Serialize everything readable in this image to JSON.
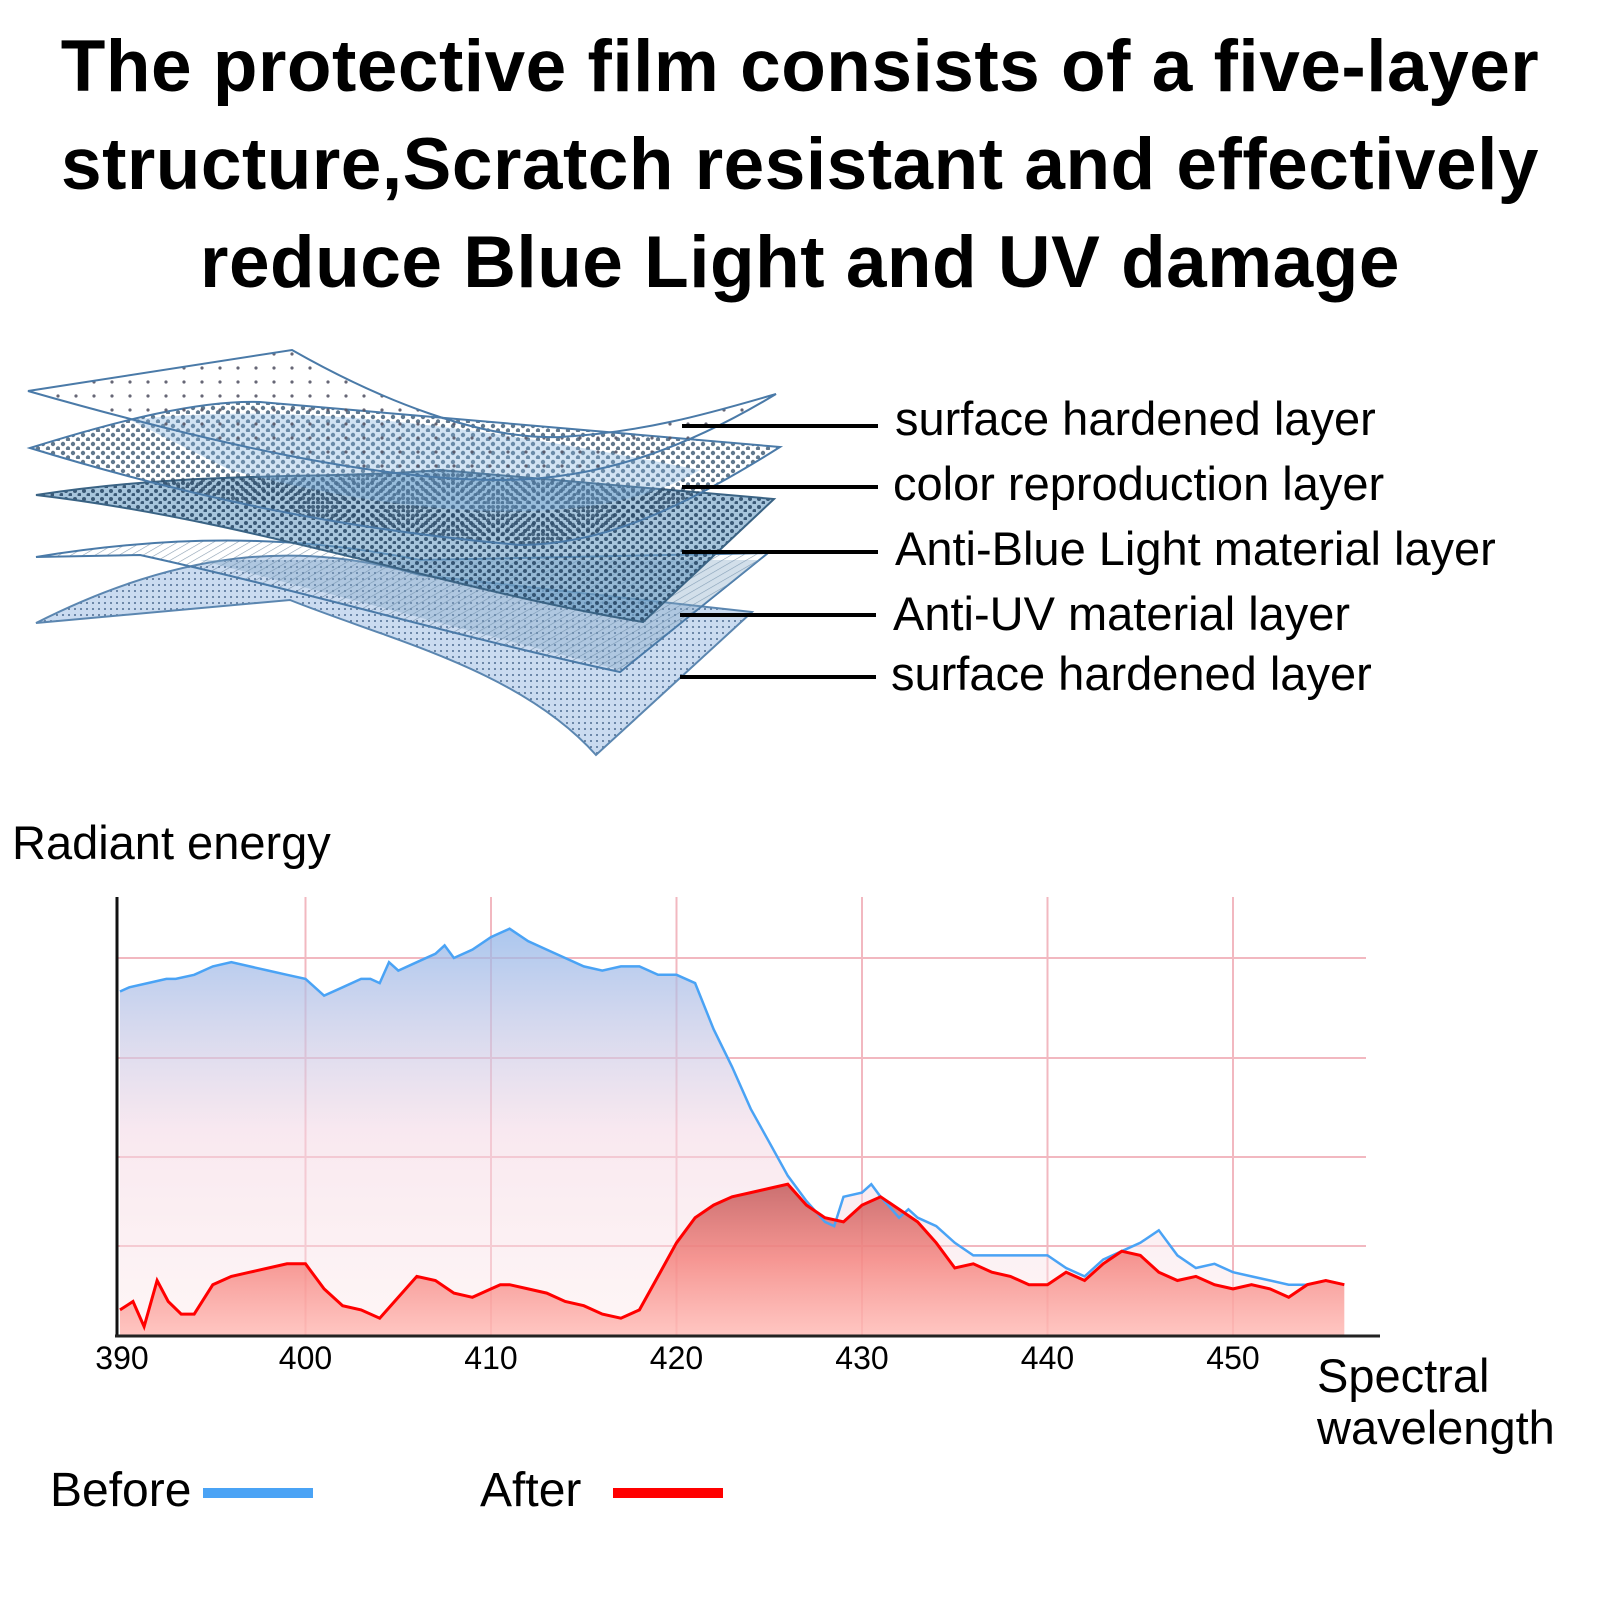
{
  "headline": {
    "lines": [
      "The protective film consists of a five-layer",
      "structure,Scratch resistant and effectively",
      "reduce Blue Light and UV damage"
    ]
  },
  "layers": [
    {
      "label": "surface hardened layer"
    },
    {
      "label": "color reproduction layer"
    },
    {
      "label": "Anti-Blue Light material layer"
    },
    {
      "label": "Anti-UV material layer"
    },
    {
      "label": "surface hardened layer"
    }
  ],
  "colors": {
    "before": "#4aa3f5",
    "after": "#ff0000",
    "grid": "#f2b8c0",
    "layer_stroke": "#4a7aa8"
  },
  "legend": {
    "before_label": "Before",
    "after_label": "After"
  },
  "chart_data": {
    "type": "area",
    "title": "",
    "ylabel": "Radiant energy",
    "xlabel": "Spectral wavelength",
    "x_ticks": [
      390,
      400,
      410,
      420,
      430,
      440,
      450
    ],
    "xlim": [
      390,
      457
    ],
    "ylim": [
      0,
      100
    ],
    "grid": true,
    "legend_position": "bottom",
    "series": [
      {
        "name": "Before",
        "color": "#4aa3f5",
        "x": [
          390,
          390.5,
          391.5,
          392.5,
          393,
          394,
          395,
          396,
          397,
          398,
          399,
          400,
          401,
          402,
          403,
          403.5,
          404,
          404.5,
          405,
          406,
          407,
          407.5,
          408,
          409,
          410,
          410.5,
          411,
          412,
          413,
          414,
          415,
          416,
          417,
          418,
          419,
          420,
          421,
          422,
          423,
          424,
          425,
          426,
          427,
          428,
          428.5,
          429,
          430,
          430.5,
          431,
          432,
          432.5,
          433,
          434,
          435,
          436,
          437,
          438,
          439,
          440,
          441,
          442,
          443,
          444,
          445,
          446,
          447,
          448,
          449,
          450,
          451,
          452,
          453,
          454,
          455,
          456
        ],
        "values": [
          82,
          83,
          84,
          85,
          85,
          86,
          88,
          89,
          88,
          87,
          86,
          85,
          81,
          83,
          85,
          85,
          84,
          89,
          87,
          89,
          91,
          93,
          90,
          92,
          95,
          96,
          97,
          94,
          92,
          90,
          88,
          87,
          88,
          88,
          86,
          86,
          84,
          73,
          64,
          54,
          46,
          38,
          32,
          27,
          26,
          33,
          34,
          36,
          33,
          28,
          30,
          28,
          26,
          22,
          19,
          19,
          19,
          19,
          19,
          16,
          14,
          18,
          20,
          22,
          25,
          19,
          16,
          17,
          15,
          14,
          13,
          12,
          12,
          13,
          12
        ]
      },
      {
        "name": "After",
        "color": "#ff0000",
        "x": [
          390,
          390.7,
          391.3,
          392,
          392.6,
          393.3,
          394,
          395,
          396,
          397,
          398,
          399,
          400,
          401,
          402,
          403,
          404,
          405,
          406,
          407,
          408,
          409,
          410,
          410.5,
          411,
          412,
          413,
          414,
          415,
          416,
          417,
          418,
          419,
          420,
          421,
          422,
          423,
          424,
          425,
          426,
          427,
          428,
          429,
          430,
          431,
          432,
          433,
          434,
          435,
          436,
          437,
          438,
          439,
          440,
          441,
          442,
          443,
          444,
          445,
          446,
          447,
          448,
          449,
          450,
          451,
          452,
          453,
          454,
          455,
          456
        ],
        "values": [
          6,
          8,
          2,
          13,
          8,
          5,
          5,
          12,
          14,
          15,
          16,
          17,
          17,
          11,
          7,
          6,
          4,
          9,
          14,
          13,
          10,
          9,
          11,
          12,
          12,
          11,
          10,
          8,
          7,
          5,
          4,
          6,
          14,
          22,
          28,
          31,
          33,
          34,
          35,
          36,
          31,
          28,
          27,
          31,
          33,
          30,
          27,
          22,
          16,
          17,
          15,
          14,
          12,
          12,
          15,
          13,
          17,
          20,
          19,
          15,
          13,
          14,
          12,
          11,
          12,
          11,
          9,
          12,
          13,
          12
        ]
      }
    ]
  }
}
